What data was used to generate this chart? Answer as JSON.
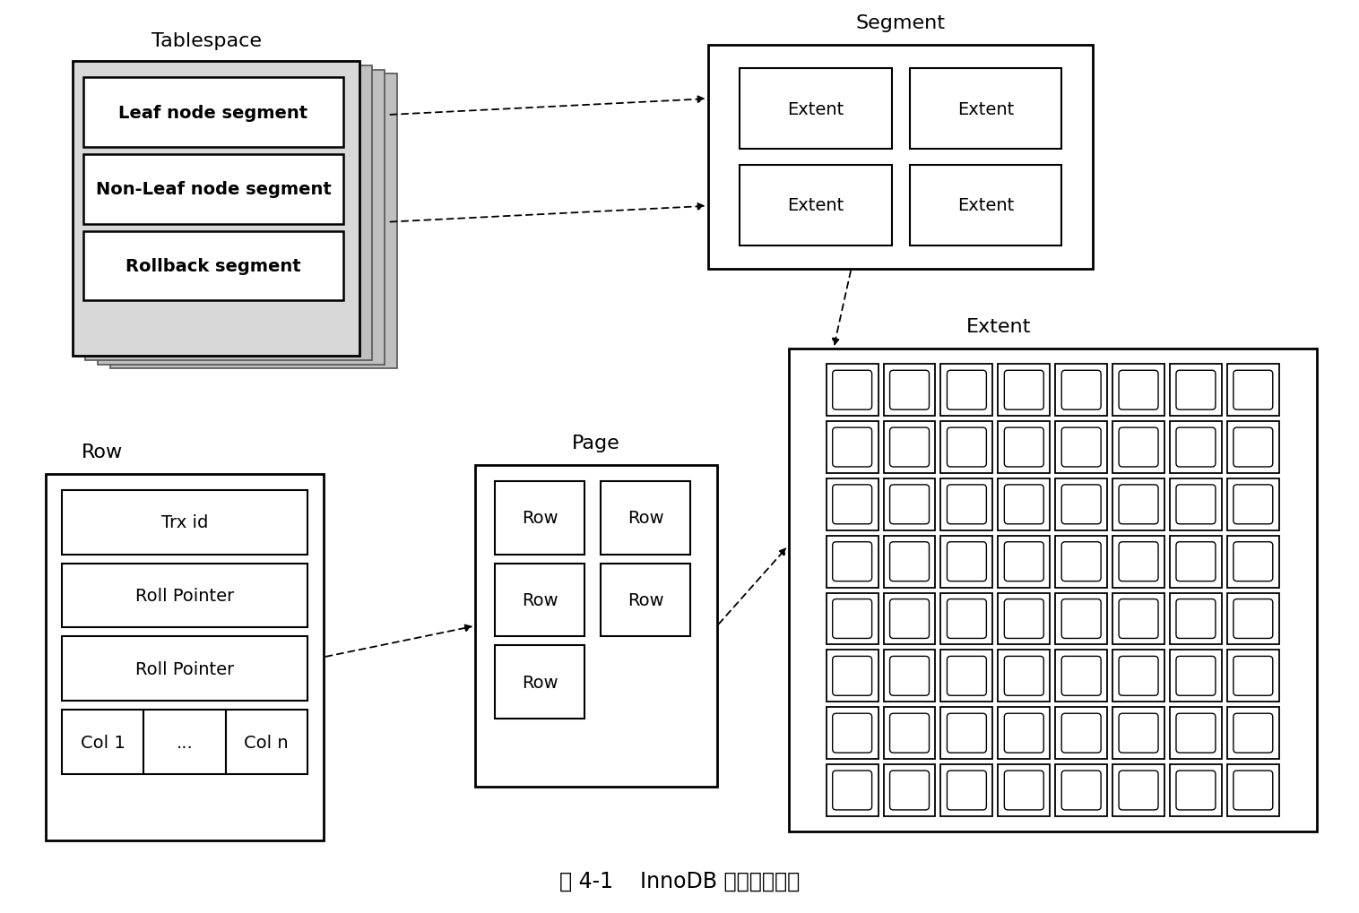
{
  "title": "图 4-1    InnoDB 逻辑存储结构",
  "title_fontsize": 17,
  "bg_color": "#ffffff",
  "tablespace_label": "Tablespace",
  "segment_label": "Segment",
  "extent_label": "Extent",
  "page_label": "Page",
  "row_label": "Row",
  "segments": [
    "Leaf node segment",
    "Non-Leaf node segment",
    "Rollback segment"
  ],
  "extent_items": [
    "Extent",
    "Extent",
    "Extent",
    "Extent"
  ],
  "row_fields": [
    "Trx id",
    "Roll Pointer",
    "Roll Pointer"
  ],
  "row_bottom": [
    "Col 1",
    "...",
    "Col n"
  ],
  "font_size": 14,
  "label_font_size": 16,
  "gray_light": "#d8d8d8",
  "gray_mid": "#c0c0c0",
  "gray_dark": "#a8a8a8",
  "white": "#ffffff",
  "black": "#000000"
}
